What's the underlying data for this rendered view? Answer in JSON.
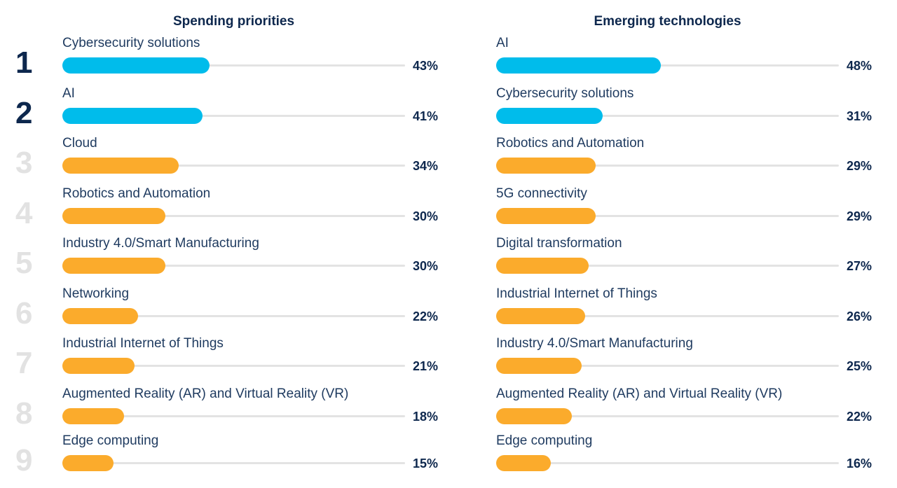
{
  "colors": {
    "highlight": "#00bceb",
    "other": "#fbab2c",
    "text": "#0d274d"
  },
  "chart_data": [
    {
      "type": "bar",
      "orientation": "horizontal",
      "title": "Spending priorities",
      "xlim": [
        0,
        100
      ],
      "unit": "%",
      "ranked": true,
      "categories": [
        "Cybersecurity solutions",
        "AI",
        "Cloud",
        "Robotics and Automation",
        "Industry 4.0/Smart Manufacturing",
        "Networking",
        "Industrial Internet of Things",
        "Augmented Reality (AR) and Virtual Reality (VR)",
        "Edge computing"
      ],
      "values": [
        43,
        41,
        34,
        30,
        30,
        22,
        21,
        18,
        15
      ],
      "labels": [
        "43%",
        "41%",
        "34%",
        "30%",
        "30%",
        "22%",
        "21%",
        "18%",
        "15%"
      ],
      "ranks": [
        "1",
        "2",
        "3",
        "4",
        "5",
        "6",
        "7",
        "8",
        "9"
      ],
      "highlight_top": 2
    },
    {
      "type": "bar",
      "orientation": "horizontal",
      "title": "Emerging technologies",
      "xlim": [
        0,
        100
      ],
      "unit": "%",
      "ranked": false,
      "categories": [
        "AI",
        "Cybersecurity solutions",
        "Robotics and Automation",
        "5G connectivity",
        "Digital transformation",
        "Industrial Internet of Things",
        "Industry 4.0/Smart Manufacturing",
        "Augmented Reality (AR) and Virtual Reality (VR)",
        "Edge computing"
      ],
      "values": [
        48,
        31,
        29,
        29,
        27,
        26,
        25,
        22,
        16
      ],
      "labels": [
        "48%",
        "31%",
        "29%",
        "29%",
        "27%",
        "26%",
        "25%",
        "22%",
        "16%"
      ],
      "highlight_top": 2
    }
  ]
}
